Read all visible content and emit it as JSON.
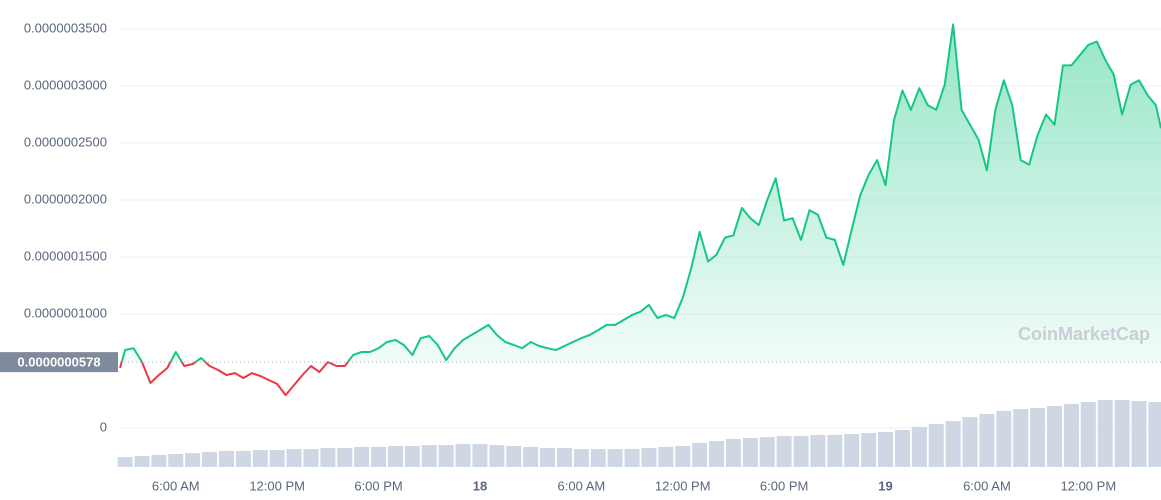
{
  "chart_data": {
    "type": "line",
    "watermark": "CoinMarketCap",
    "xlim": [
      2.7,
      64.3
    ],
    "xticks": [
      {
        "value": 6,
        "label": "6:00 AM"
      },
      {
        "value": 12,
        "label": "12:00 PM"
      },
      {
        "value": 18,
        "label": "6:00 PM"
      },
      {
        "value": 24,
        "label": "18"
      },
      {
        "value": 30,
        "label": "6:00 AM"
      },
      {
        "value": 36,
        "label": "12:00 PM"
      },
      {
        "value": 42,
        "label": "6:00 PM"
      },
      {
        "value": 48,
        "label": "19"
      },
      {
        "value": 54,
        "label": "6:00 AM"
      },
      {
        "value": 60,
        "label": "12:00 PM"
      }
    ],
    "ylim": [
      -3.42e-08,
      3.754e-07
    ],
    "yticks": [
      0,
      {
        "value": 1e-07,
        "label": "0.0000001000"
      },
      {
        "value": 1.5e-07,
        "label": "0.0000001500"
      },
      {
        "value": 2e-07,
        "label": "0.0000002000"
      },
      {
        "value": 2.5e-07,
        "label": "0.0000002500"
      },
      {
        "value": 3e-07,
        "label": "0.0000003000"
      },
      {
        "value": 3.5e-07,
        "label": "0.0000003500"
      }
    ],
    "grid": true,
    "baseline": {
      "value": 5.78e-08,
      "label": "0.0000000578"
    },
    "up_color": "#16c784",
    "down_color": "#ea3943",
    "series": [
      {
        "x": [
          2.7,
          3,
          3.5,
          4,
          4.5,
          5,
          5.5,
          6,
          6.5,
          7,
          7.5,
          8,
          8.5,
          9,
          9.5,
          10,
          10.5,
          11,
          11.5,
          12,
          12.5,
          13,
          13.5,
          14,
          14.5,
          15,
          15.5,
          16,
          16.5,
          17,
          17.5,
          18,
          18.5,
          19,
          19.5,
          20,
          20.5,
          21,
          21.5,
          22,
          22.5,
          23,
          23.5,
          24,
          24.5,
          25,
          25.5,
          26,
          26.5,
          27,
          27.5,
          28,
          28.5,
          29,
          29.5,
          30,
          30.5,
          31,
          31.5,
          32,
          32.5,
          33,
          33.5,
          34,
          34.5,
          35,
          35.5,
          36,
          36.5,
          37,
          37.5,
          38,
          38.5,
          39,
          39.5,
          40,
          40.5,
          41,
          41.5,
          42,
          42.5,
          43,
          43.5,
          44,
          44.5,
          45,
          45.5,
          46,
          46.5,
          47,
          47.5,
          48,
          48.5,
          49,
          49.5,
          50,
          50.5,
          51,
          51.5,
          52,
          52.5,
          53,
          53.5,
          54,
          54.5,
          55,
          55.5,
          56,
          56.5,
          57,
          57.5,
          58,
          58.5,
          59,
          59.5,
          60,
          60.5,
          61,
          61.5,
          62,
          62.5,
          63,
          63.5,
          64,
          64.3
        ],
        "values": [
          5.26e-08,
          6.84e-08,
          7e-08,
          5.79e-08,
          3.95e-08,
          4.65e-08,
          5.26e-08,
          6.67e-08,
          5.44e-08,
          5.61e-08,
          6.14e-08,
          5.44e-08,
          5.09e-08,
          4.65e-08,
          4.82e-08,
          4.39e-08,
          4.82e-08,
          4.56e-08,
          4.21e-08,
          3.86e-08,
          2.89e-08,
          3.77e-08,
          4.65e-08,
          5.44e-08,
          4.91e-08,
          5.79e-08,
          5.44e-08,
          5.44e-08,
          6.4e-08,
          6.67e-08,
          6.67e-08,
          7e-08,
          7.54e-08,
          7.72e-08,
          7.28e-08,
          6.4e-08,
          7.89e-08,
          8.07e-08,
          7.28e-08,
          5.96e-08,
          7e-08,
          7.72e-08,
          8.16e-08,
          8.6e-08,
          9.04e-08,
          8.16e-08,
          7.54e-08,
          7.28e-08,
          7e-08,
          7.54e-08,
          7.19e-08,
          7e-08,
          6.84e-08,
          7.19e-08,
          7.54e-08,
          7.89e-08,
          8.16e-08,
          8.6e-08,
          9.04e-08,
          9.04e-08,
          9.47e-08,
          9.91e-08,
          1.02e-07,
          1.08e-07,
          9.65e-08,
          9.91e-08,
          9.65e-08,
          1.14e-07,
          1.4e-07,
          1.72e-07,
          1.46e-07,
          1.52e-07,
          1.67e-07,
          1.69e-07,
          1.93e-07,
          1.84e-07,
          1.78e-07,
          2e-07,
          2.19e-07,
          1.82e-07,
          1.84e-07,
          1.65e-07,
          1.91e-07,
          1.87e-07,
          1.67e-07,
          1.65e-07,
          1.43e-07,
          1.74e-07,
          2.04e-07,
          2.22e-07,
          2.35e-07,
          2.13e-07,
          2.7e-07,
          2.96e-07,
          2.79e-07,
          2.98e-07,
          2.83e-07,
          2.79e-07,
          3.01e-07,
          3.54e-07,
          2.79e-07,
          2.66e-07,
          2.53e-07,
          2.26e-07,
          2.79e-07,
          3.05e-07,
          2.83e-07,
          2.35e-07,
          2.31e-07,
          2.57e-07,
          2.75e-07,
          2.66e-07,
          3.18e-07,
          3.18e-07,
          3.27e-07,
          3.36e-07,
          3.39e-07,
          3.23e-07,
          3.1e-07,
          2.75e-07,
          3.01e-07,
          3.05e-07,
          2.92e-07,
          2.83e-07,
          2.63e-07
        ]
      }
    ],
    "volume": {
      "color": "#cfd6e4",
      "y2lim": [
        0,
        100
      ],
      "x": [
        3,
        4,
        5,
        6,
        7,
        8,
        9,
        10,
        11,
        12,
        13,
        14,
        15,
        16,
        17,
        18,
        19,
        20,
        21,
        22,
        23,
        24,
        25,
        26,
        27,
        28,
        29,
        30,
        31,
        32,
        33,
        34,
        35,
        36,
        37,
        38,
        39,
        40,
        41,
        42,
        43,
        44,
        45,
        46,
        47,
        48,
        49,
        50,
        51,
        52,
        53,
        54,
        55,
        56,
        57,
        58,
        59,
        60,
        61,
        62,
        63,
        64
      ],
      "values": [
        10,
        11,
        12,
        13,
        14,
        15,
        16,
        16,
        17,
        17,
        18,
        18,
        19,
        19,
        20,
        20,
        21,
        21,
        22,
        22,
        23,
        23,
        22,
        21,
        20,
        19,
        19,
        18,
        18,
        18,
        18,
        19,
        20,
        21,
        24,
        26,
        28,
        29,
        30,
        31,
        31,
        32,
        32,
        33,
        34,
        35,
        37,
        40,
        43,
        46,
        50,
        53,
        56,
        58,
        59,
        61,
        63,
        65,
        67,
        67,
        66,
        65
      ]
    }
  }
}
